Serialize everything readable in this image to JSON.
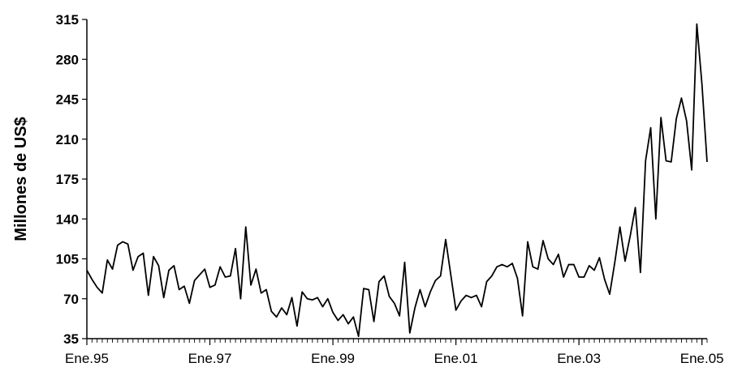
{
  "chart_data": {
    "type": "line",
    "title": "",
    "xlabel": "",
    "ylabel": "Millones de US$",
    "ylim": [
      35,
      315
    ],
    "yticks": [
      "35",
      "70",
      "105",
      "140",
      "175",
      "210",
      "245",
      "280",
      "315"
    ],
    "xtick_labels": [
      "Ene.95",
      "Ene.97",
      "Ene.99",
      "Ene.01",
      "Ene.03",
      "Ene.05"
    ],
    "xtick_months_from_start": [
      0,
      24,
      48,
      72,
      96,
      120
    ],
    "grid": false,
    "legend": "none",
    "line_color": "#000000",
    "start": "Ene.95",
    "frequency": "monthly",
    "series": [
      {
        "values": [
          95,
          87,
          80,
          75,
          104,
          96,
          117,
          120,
          118,
          95,
          107,
          110,
          73,
          107,
          99,
          71,
          95,
          99,
          78,
          81,
          66,
          86,
          91,
          96,
          80,
          82,
          98,
          89,
          90,
          114,
          70,
          133,
          82,
          96,
          75,
          78,
          59,
          54,
          62,
          56,
          71,
          46,
          76,
          70,
          69,
          71,
          63,
          70,
          58,
          51,
          56,
          48,
          54,
          37,
          79,
          78,
          50,
          85,
          90,
          72,
          66,
          55,
          102,
          40,
          62,
          78,
          63,
          76,
          86,
          90,
          122,
          91,
          60,
          68,
          73,
          71,
          73,
          63,
          85,
          90,
          98,
          100,
          98,
          101,
          88,
          55,
          120,
          98,
          96,
          121,
          105,
          100,
          109,
          89,
          100,
          100,
          89,
          89,
          99,
          95,
          106,
          87,
          74,
          102,
          133,
          103,
          125,
          150,
          93,
          191,
          220,
          140,
          229,
          191,
          190,
          228,
          246,
          226,
          183,
          311,
          258,
          190
        ]
      }
    ]
  }
}
